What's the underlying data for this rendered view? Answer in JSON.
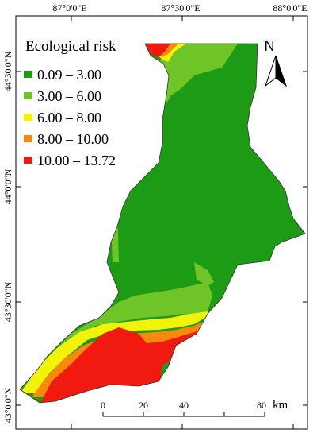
{
  "map": {
    "longitude_labels": [
      "87°0'0\"E",
      "87°30'0\"E",
      "88°0'0\"E"
    ],
    "latitude_labels": [
      "44°30'0\"N",
      "44°0'0\"N",
      "43°30'0\"N",
      "43°0'0\"N"
    ]
  },
  "legend": {
    "title": "Ecological risk",
    "classes": [
      {
        "label": "0.09 – 3.00",
        "color": "#1e9b14"
      },
      {
        "label": "3.00 – 6.00",
        "color": "#6fc428"
      },
      {
        "label": "6.00 – 8.00",
        "color": "#f2f20a"
      },
      {
        "label": "8.00 – 10.00",
        "color": "#f58a0f"
      },
      {
        "label": "10.00 – 13.72",
        "color": "#f01a10"
      }
    ]
  },
  "north_arrow": {
    "label": "N",
    "icon": "north-arrow-icon"
  },
  "scale_bar": {
    "ticks": [
      "0",
      "20",
      "40",
      "80"
    ],
    "unit": "km"
  }
}
